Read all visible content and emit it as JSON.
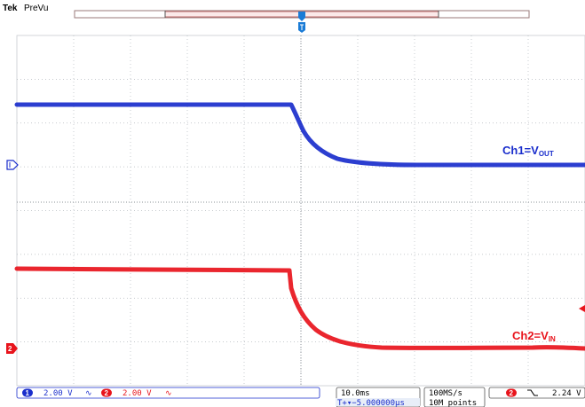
{
  "app": {
    "brand": "Tek",
    "mode": "PreVu"
  },
  "colors": {
    "ch1": "#1a2ecc",
    "ch2": "#e8141c",
    "grid": "#9aa0a6",
    "trigger": "#1a7bd6"
  },
  "icons": {
    "ch1_marker": "triangle-marker",
    "ch2_marker": "ch2-badge-marker",
    "trigger": "trigger-position-icon",
    "slope": "falling-edge-icon"
  },
  "labels": {
    "ch1": {
      "prefix": "Ch1=V",
      "sub": "OUT"
    },
    "ch2": {
      "prefix": "Ch2=V",
      "sub": "IN"
    }
  },
  "statusbar": {
    "ch1": {
      "num": "1",
      "scale": "2.00 V",
      "coupling": "∿"
    },
    "ch2": {
      "num": "2",
      "scale": "2.00 V",
      "coupling": "∿"
    },
    "timebase": {
      "scale": "10.0ms",
      "delay": "T+▾−5.000000µs"
    },
    "acq": {
      "rate": "100MS/s",
      "points": "10M points"
    },
    "trigger": {
      "source": "2",
      "level": "2.24 V"
    }
  }
}
